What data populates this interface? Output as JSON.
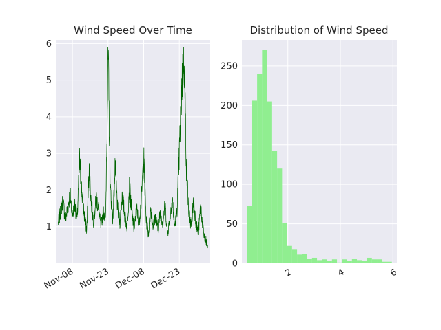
{
  "chart_data": [
    {
      "type": "line",
      "title": "Wind Speed Over Time",
      "xlabel": "",
      "ylabel": "",
      "x_tick_labels": [
        "Nov-08",
        "Nov-23",
        "Dec-08",
        "Dec-23"
      ],
      "x_tick_dates": [
        "2023-11-08",
        "2023-11-23",
        "2023-12-08",
        "2023-12-23"
      ],
      "xlim": [
        "2023-11-01",
        "2024-01-05"
      ],
      "ylim": [
        0.0,
        6.1
      ],
      "y_ticks": [
        1,
        2,
        3,
        4,
        5,
        6
      ],
      "grid": true,
      "series": [
        {
          "color": "#006400",
          "points": [
            [
              "2023-11-02",
              1.1
            ],
            [
              "2023-11-03",
              1.4
            ],
            [
              "2023-11-04",
              1.7
            ],
            [
              "2023-11-05",
              1.2
            ],
            [
              "2023-11-06",
              1.5
            ],
            [
              "2023-11-07",
              1.9
            ],
            [
              "2023-11-08",
              1.3
            ],
            [
              "2023-11-09",
              1.6
            ],
            [
              "2023-11-10",
              1.2
            ],
            [
              "2023-11-11",
              2.8
            ],
            [
              "2023-11-12",
              1.9
            ],
            [
              "2023-11-13",
              1.3
            ],
            [
              "2023-11-14",
              0.9
            ],
            [
              "2023-11-15",
              2.6
            ],
            [
              "2023-11-16",
              1.6
            ],
            [
              "2023-11-17",
              1.1
            ],
            [
              "2023-11-18",
              1.8
            ],
            [
              "2023-11-19",
              1.5
            ],
            [
              "2023-11-20",
              1.0
            ],
            [
              "2023-11-21",
              1.4
            ],
            [
              "2023-11-22",
              1.3
            ],
            [
              "2023-11-23",
              5.7
            ],
            [
              "2023-11-24",
              2.0
            ],
            [
              "2023-11-25",
              1.2
            ],
            [
              "2023-11-26",
              2.6
            ],
            [
              "2023-11-27",
              1.5
            ],
            [
              "2023-11-28",
              1.1
            ],
            [
              "2023-11-29",
              1.9
            ],
            [
              "2023-11-30",
              1.3
            ],
            [
              "2023-12-01",
              1.0
            ],
            [
              "2023-12-02",
              2.1
            ],
            [
              "2023-12-03",
              1.4
            ],
            [
              "2023-12-04",
              0.9
            ],
            [
              "2023-12-05",
              1.5
            ],
            [
              "2023-12-06",
              1.1
            ],
            [
              "2023-12-07",
              1.7
            ],
            [
              "2023-12-08",
              2.9
            ],
            [
              "2023-12-09",
              1.2
            ],
            [
              "2023-12-10",
              0.8
            ],
            [
              "2023-12-11",
              1.5
            ],
            [
              "2023-12-12",
              1.0
            ],
            [
              "2023-12-13",
              1.3
            ],
            [
              "2023-12-14",
              0.9
            ],
            [
              "2023-12-15",
              1.4
            ],
            [
              "2023-12-16",
              1.1
            ],
            [
              "2023-12-17",
              1.6
            ],
            [
              "2023-12-18",
              0.8
            ],
            [
              "2023-12-19",
              1.2
            ],
            [
              "2023-12-20",
              1.8
            ],
            [
              "2023-12-21",
              1.0
            ],
            [
              "2023-12-22",
              1.4
            ],
            [
              "2023-12-23",
              3.0
            ],
            [
              "2023-12-24",
              4.8
            ],
            [
              "2023-12-25",
              5.8
            ],
            [
              "2023-12-26",
              2.6
            ],
            [
              "2023-12-27",
              1.4
            ],
            [
              "2023-12-28",
              1.0
            ],
            [
              "2023-12-29",
              1.7
            ],
            [
              "2023-12-30",
              1.1
            ],
            [
              "2023-12-31",
              0.8
            ],
            [
              "2024-01-01",
              1.6
            ],
            [
              "2024-01-02",
              0.9
            ],
            [
              "2024-01-03",
              0.6
            ],
            [
              "2024-01-04",
              0.5
            ]
          ]
        }
      ]
    },
    {
      "type": "bar",
      "title": "Distribution of Wind Speed",
      "xlabel": "",
      "ylabel": "",
      "xlim": [
        0.25,
        6.15
      ],
      "ylim": [
        0,
        283
      ],
      "x_ticks": [
        2,
        4,
        6
      ],
      "y_ticks": [
        0,
        50,
        100,
        150,
        200,
        250
      ],
      "grid": true,
      "color": "#90ee90",
      "bin_edges": [
        0.45,
        0.64,
        0.83,
        1.02,
        1.21,
        1.4,
        1.59,
        1.78,
        1.97,
        2.16,
        2.35,
        2.54,
        2.73,
        2.92,
        3.11,
        3.3,
        3.49,
        3.68,
        3.87,
        4.06,
        4.25,
        4.44,
        4.63,
        4.82,
        5.01,
        5.2,
        5.39,
        5.58,
        5.77,
        5.96
      ],
      "values": [
        73,
        206,
        240,
        270,
        205,
        142,
        120,
        51,
        22,
        18,
        11,
        12,
        6,
        7,
        4,
        5,
        3,
        5,
        1,
        5,
        3,
        6,
        4,
        3,
        7,
        5,
        5,
        2,
        2
      ]
    }
  ]
}
